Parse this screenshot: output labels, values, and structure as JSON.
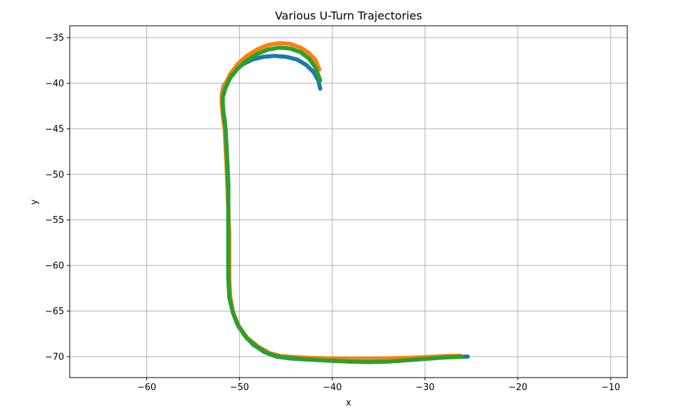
{
  "chart_data": {
    "type": "scatter",
    "title": "Various U-Turn Trajectories",
    "xlabel": "x",
    "ylabel": "y",
    "xlim": [
      -68.3,
      -8.2
    ],
    "ylim": [
      -72.3,
      -33.7
    ],
    "xticks": [
      -60,
      -50,
      -40,
      -30,
      -20,
      -10
    ],
    "yticks": [
      -35,
      -40,
      -45,
      -50,
      -55,
      -60,
      -65,
      -70
    ],
    "grid": true,
    "legend": "none",
    "series": [
      {
        "color": "#1f77b4",
        "marker_size": 3,
        "x": [
          -25.4,
          -27.0,
          -29.0,
          -31.0,
          -33.0,
          -35.0,
          -37.0,
          -39.0,
          -41.0,
          -43.0,
          -44.5,
          -46.0,
          -47.3,
          -48.5,
          -49.5,
          -50.3,
          -50.8,
          -51.1,
          -51.2,
          -51.2,
          -51.2,
          -51.2,
          -51.2,
          -51.2,
          -51.3,
          -51.4,
          -51.5,
          -51.6,
          -51.8,
          -51.9,
          -51.9,
          -51.7,
          -51.2,
          -50.5,
          -49.6,
          -48.6,
          -47.4,
          -46.2,
          -45.0,
          -43.8,
          -42.8,
          -42.0,
          -41.5,
          -41.3
        ],
        "y": [
          -70.0,
          -70.0,
          -70.1,
          -70.3,
          -70.45,
          -70.55,
          -70.55,
          -70.5,
          -70.4,
          -70.3,
          -70.2,
          -70.0,
          -69.5,
          -68.7,
          -67.6,
          -66.3,
          -64.8,
          -63.0,
          -61.0,
          -59.0,
          -57.0,
          -55.0,
          -53.0,
          -51.0,
          -49.0,
          -47.0,
          -45.5,
          -44.0,
          -43.0,
          -42.0,
          -41.2,
          -40.3,
          -39.5,
          -38.6,
          -37.9,
          -37.4,
          -37.1,
          -37.0,
          -37.1,
          -37.4,
          -38.0,
          -38.8,
          -39.7,
          -40.6
        ]
      },
      {
        "color": "#ff7f0e",
        "marker_size": 3,
        "x": [
          -26.2,
          -28.0,
          -30.0,
          -32.0,
          -34.0,
          -36.0,
          -38.0,
          -40.0,
          -42.0,
          -44.0,
          -45.5,
          -46.8,
          -48.0,
          -49.2,
          -50.1,
          -50.7,
          -51.0,
          -51.1,
          -51.1,
          -51.1,
          -51.2,
          -51.3,
          -51.4,
          -51.5,
          -51.6,
          -51.8,
          -51.9,
          -51.9,
          -51.6,
          -51.0,
          -50.2,
          -49.2,
          -48.1,
          -46.9,
          -45.7,
          -44.5,
          -43.4,
          -42.5,
          -41.8,
          -41.4
        ],
        "y": [
          -69.9,
          -69.95,
          -70.05,
          -70.15,
          -70.2,
          -70.25,
          -70.25,
          -70.2,
          -70.15,
          -70.05,
          -69.95,
          -69.6,
          -68.9,
          -67.9,
          -66.6,
          -65.1,
          -63.4,
          -61.5,
          -59.0,
          -56.5,
          -54.0,
          -51.5,
          -49.0,
          -47.0,
          -45.0,
          -43.5,
          -42.3,
          -41.3,
          -40.2,
          -39.0,
          -37.9,
          -37.0,
          -36.3,
          -35.8,
          -35.6,
          -35.7,
          -36.1,
          -36.7,
          -37.5,
          -38.5
        ]
      },
      {
        "color": "#2ca02c",
        "marker_size": 3,
        "x": [
          -26.0,
          -28.0,
          -30.0,
          -32.0,
          -34.0,
          -36.0,
          -38.0,
          -40.0,
          -42.0,
          -44.0,
          -45.5,
          -46.8,
          -48.0,
          -49.2,
          -50.1,
          -50.7,
          -51.1,
          -51.2,
          -51.2,
          -51.2,
          -51.2,
          -51.2,
          -51.3,
          -51.4,
          -51.5,
          -51.7,
          -51.8,
          -51.8,
          -51.5,
          -51.0,
          -50.2,
          -49.2,
          -48.1,
          -46.9,
          -45.7,
          -44.5,
          -43.4,
          -42.5,
          -41.8,
          -41.3
        ],
        "y": [
          -70.0,
          -70.1,
          -70.25,
          -70.4,
          -70.55,
          -70.6,
          -70.55,
          -70.45,
          -70.35,
          -70.2,
          -70.05,
          -69.7,
          -69.0,
          -68.0,
          -66.7,
          -65.2,
          -63.5,
          -61.5,
          -59.0,
          -56.5,
          -54.0,
          -51.5,
          -49.0,
          -47.0,
          -45.0,
          -43.5,
          -42.3,
          -41.5,
          -40.5,
          -39.4,
          -38.4,
          -37.5,
          -36.8,
          -36.3,
          -36.1,
          -36.2,
          -36.6,
          -37.3,
          -38.3,
          -39.7
        ]
      }
    ]
  }
}
